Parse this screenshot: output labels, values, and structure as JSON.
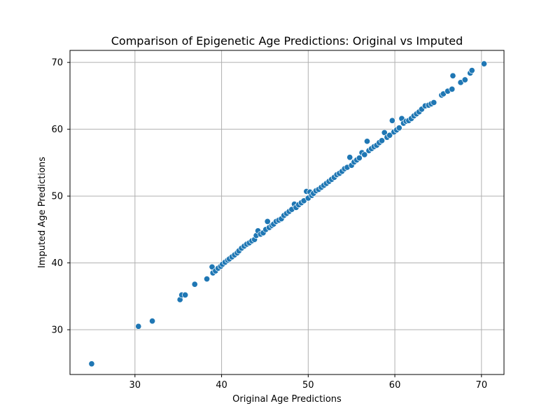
{
  "chart_data": {
    "type": "scatter",
    "title": "Comparison of Epigenetic Age Predictions: Original vs Imputed",
    "xlabel": "Original Age Predictions",
    "ylabel": "Imputed Age Predictions",
    "xlim": [
      22.5,
      72.6
    ],
    "ylim": [
      23.3,
      71.8
    ],
    "xticks": [
      30,
      40,
      50,
      60,
      70
    ],
    "yticks": [
      30,
      40,
      50,
      60,
      70
    ],
    "grid": true,
    "point_color": "#1f77b4",
    "points": [
      [
        25.0,
        24.9
      ],
      [
        30.4,
        30.5
      ],
      [
        32.0,
        31.3
      ],
      [
        35.2,
        34.5
      ],
      [
        35.4,
        35.2
      ],
      [
        35.8,
        35.2
      ],
      [
        36.9,
        36.8
      ],
      [
        38.3,
        37.6
      ],
      [
        38.9,
        39.4
      ],
      [
        39.0,
        38.5
      ],
      [
        39.3,
        38.8
      ],
      [
        39.6,
        39.2
      ],
      [
        39.9,
        39.5
      ],
      [
        40.1,
        39.8
      ],
      [
        40.4,
        40.1
      ],
      [
        40.7,
        40.4
      ],
      [
        40.9,
        40.6
      ],
      [
        41.2,
        40.9
      ],
      [
        41.5,
        41.2
      ],
      [
        41.8,
        41.5
      ],
      [
        42.0,
        41.8
      ],
      [
        42.3,
        42.2
      ],
      [
        42.6,
        42.5
      ],
      [
        42.9,
        42.8
      ],
      [
        43.2,
        43.0
      ],
      [
        43.5,
        43.3
      ],
      [
        43.8,
        43.5
      ],
      [
        44.0,
        44.1
      ],
      [
        44.2,
        44.8
      ],
      [
        44.5,
        44.3
      ],
      [
        44.8,
        44.5
      ],
      [
        45.1,
        45.0
      ],
      [
        45.3,
        46.2
      ],
      [
        45.5,
        45.3
      ],
      [
        45.8,
        45.6
      ],
      [
        46.0,
        45.8
      ],
      [
        46.3,
        46.2
      ],
      [
        46.6,
        46.4
      ],
      [
        46.9,
        46.6
      ],
      [
        47.2,
        47.1
      ],
      [
        47.5,
        47.4
      ],
      [
        47.8,
        47.7
      ],
      [
        48.1,
        48.0
      ],
      [
        48.4,
        48.8
      ],
      [
        48.6,
        48.3
      ],
      [
        48.9,
        48.7
      ],
      [
        49.2,
        49.0
      ],
      [
        49.5,
        49.3
      ],
      [
        49.8,
        50.7
      ],
      [
        50.0,
        49.7
      ],
      [
        50.2,
        50.6
      ],
      [
        50.4,
        50.1
      ],
      [
        50.6,
        50.4
      ],
      [
        50.9,
        50.8
      ],
      [
        51.2,
        51.0
      ],
      [
        51.5,
        51.3
      ],
      [
        51.8,
        51.6
      ],
      [
        52.1,
        51.9
      ],
      [
        52.4,
        52.2
      ],
      [
        52.7,
        52.5
      ],
      [
        53.0,
        52.8
      ],
      [
        53.3,
        53.2
      ],
      [
        53.6,
        53.4
      ],
      [
        53.9,
        53.7
      ],
      [
        54.2,
        54.1
      ],
      [
        54.5,
        54.3
      ],
      [
        54.8,
        55.8
      ],
      [
        55.0,
        54.6
      ],
      [
        55.3,
        55.1
      ],
      [
        55.6,
        55.4
      ],
      [
        55.9,
        55.7
      ],
      [
        56.2,
        56.5
      ],
      [
        56.5,
        56.2
      ],
      [
        56.8,
        58.2
      ],
      [
        57.0,
        56.8
      ],
      [
        57.3,
        57.1
      ],
      [
        57.6,
        57.4
      ],
      [
        57.9,
        57.6
      ],
      [
        58.2,
        58.0
      ],
      [
        58.5,
        58.3
      ],
      [
        58.8,
        59.5
      ],
      [
        59.1,
        58.8
      ],
      [
        59.4,
        59.1
      ],
      [
        59.7,
        61.3
      ],
      [
        59.9,
        59.6
      ],
      [
        60.2,
        59.9
      ],
      [
        60.5,
        60.2
      ],
      [
        60.8,
        61.6
      ],
      [
        61.0,
        60.9
      ],
      [
        61.3,
        61.2
      ],
      [
        61.6,
        61.3
      ],
      [
        61.9,
        61.6
      ],
      [
        62.2,
        62.0
      ],
      [
        62.5,
        62.3
      ],
      [
        62.8,
        62.6
      ],
      [
        63.1,
        63.0
      ],
      [
        63.5,
        63.5
      ],
      [
        63.9,
        63.6
      ],
      [
        64.2,
        63.8
      ],
      [
        64.5,
        64.0
      ],
      [
        65.4,
        65.1
      ],
      [
        65.6,
        65.3
      ],
      [
        66.1,
        65.7
      ],
      [
        66.6,
        66.0
      ],
      [
        66.7,
        68.0
      ],
      [
        67.6,
        67.0
      ],
      [
        68.1,
        67.4
      ],
      [
        68.7,
        68.4
      ],
      [
        68.9,
        68.8
      ],
      [
        70.3,
        69.8
      ]
    ]
  }
}
